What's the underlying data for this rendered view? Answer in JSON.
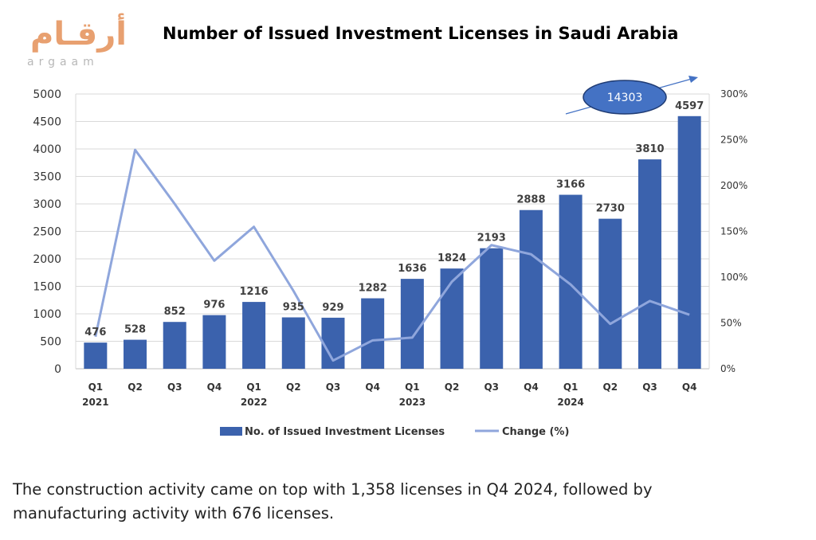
{
  "logo": {
    "arabic": "أرقـام",
    "latin": "argaam"
  },
  "chart_data": {
    "type": "bar",
    "title": "Number of Issued Investment Licenses in Saudi Arabia",
    "categories": [
      {
        "q": "Q1",
        "year": "2021"
      },
      {
        "q": "Q2",
        "year": ""
      },
      {
        "q": "Q3",
        "year": ""
      },
      {
        "q": "Q4",
        "year": ""
      },
      {
        "q": "Q1",
        "year": "2022"
      },
      {
        "q": "Q2",
        "year": ""
      },
      {
        "q": "Q3",
        "year": ""
      },
      {
        "q": "Q4",
        "year": ""
      },
      {
        "q": "Q1",
        "year": "2023"
      },
      {
        "q": "Q2",
        "year": ""
      },
      {
        "q": "Q3",
        "year": ""
      },
      {
        "q": "Q4",
        "year": ""
      },
      {
        "q": "Q1",
        "year": "2024"
      },
      {
        "q": "Q2",
        "year": ""
      },
      {
        "q": "Q3",
        "year": ""
      },
      {
        "q": "Q4",
        "year": ""
      }
    ],
    "series": [
      {
        "name": "No. of Issued Investment  Licenses",
        "type": "bar",
        "axis": "left",
        "color": "#3b62ad",
        "values": [
          476,
          528,
          852,
          976,
          1216,
          935,
          929,
          1282,
          1636,
          1824,
          2193,
          2888,
          3166,
          2730,
          3810,
          4597
        ],
        "labels": [
          "476",
          "528",
          "852",
          "976",
          "1216",
          "935",
          "929",
          "1282",
          "1636",
          "1824",
          "2193",
          "2888",
          "3166",
          "2730",
          "3810",
          "4597"
        ]
      },
      {
        "name": "Change (%)",
        "type": "line",
        "axis": "right",
        "color": "#8fa6dc",
        "values": [
          35,
          239,
          180,
          118,
          155,
          85,
          9,
          31,
          34,
          95,
          135,
          125,
          92,
          49,
          74,
          59
        ]
      }
    ],
    "y_left": {
      "min": 0,
      "max": 5000,
      "ticks": [
        "0",
        "500",
        "1000",
        "1500",
        "2000",
        "2500",
        "3000",
        "3500",
        "4000",
        "4500",
        "5000"
      ]
    },
    "y_right": {
      "min": 0,
      "max": 300,
      "ticks": [
        "0%",
        "50%",
        "100%",
        "150%",
        "200%",
        "250%",
        "300%"
      ]
    },
    "grid": true,
    "legend": "bottom",
    "annotation": {
      "text": "14303",
      "fill": "#4472c4",
      "stroke": "#1f3b73"
    }
  },
  "caption": {
    "line1": "The construction activity came on top with 1,358 licenses in Q4 2024, followed by",
    "line2": "manufacturing activity with 676 licenses."
  }
}
